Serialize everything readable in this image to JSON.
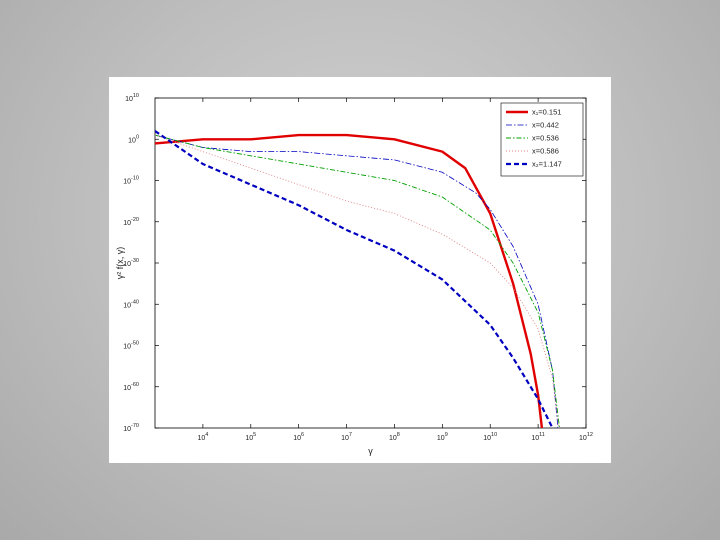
{
  "chart_data": {
    "type": "line",
    "xlabel": "γ",
    "ylabel": "γ² f(x, γ)",
    "x_scale": "log",
    "y_scale": "log",
    "xlim": [
      1000,
      1000000000000
    ],
    "ylim": [
      1e-70,
      10000000000.0
    ],
    "grid": false,
    "legend_position": "top-right",
    "x_ticks": [
      {
        "value": 10000,
        "base": "10",
        "exp": "4"
      },
      {
        "value": 100000,
        "base": "10",
        "exp": "5"
      },
      {
        "value": 1000000,
        "base": "10",
        "exp": "6"
      },
      {
        "value": 10000000,
        "base": "10",
        "exp": "7"
      },
      {
        "value": 100000000,
        "base": "10",
        "exp": "8"
      },
      {
        "value": 1000000000,
        "base": "10",
        "exp": "9"
      },
      {
        "value": 10000000000,
        "base": "10",
        "exp": "10"
      },
      {
        "value": 100000000000,
        "base": "10",
        "exp": "11"
      },
      {
        "value": 1000000000000,
        "base": "10",
        "exp": "12"
      }
    ],
    "y_ticks": [
      {
        "value": 10000000000.0,
        "base": "10",
        "exp": "10"
      },
      {
        "value": 1,
        "base": "10",
        "exp": "0"
      },
      {
        "value": 1e-10,
        "base": "10",
        "exp": "-10"
      },
      {
        "value": 1e-20,
        "base": "10",
        "exp": "-20"
      },
      {
        "value": 1e-30,
        "base": "10",
        "exp": "-30"
      },
      {
        "value": 1e-40,
        "base": "10",
        "exp": "-40"
      },
      {
        "value": 1e-50,
        "base": "10",
        "exp": "-50"
      },
      {
        "value": 1e-60,
        "base": "10",
        "exp": "-60"
      },
      {
        "value": 1e-70,
        "base": "10",
        "exp": "-70"
      }
    ],
    "series": [
      {
        "name": "x₁=0.151",
        "color": "#e00000",
        "style": "solid-thick",
        "points": [
          [
            1000,
            0.1
          ],
          [
            10000,
            1.0
          ],
          [
            100000,
            1.0
          ],
          [
            1000000,
            10.0
          ],
          [
            10000000,
            10.0
          ],
          [
            100000000,
            1.0
          ],
          [
            1000000000,
            0.001
          ],
          [
            3000000000,
            1e-07
          ],
          [
            10000000000,
            1e-18
          ],
          [
            30000000000,
            1e-35
          ],
          [
            70000000000,
            1e-52
          ],
          [
            100000000000,
            1e-62
          ],
          [
            120000000000,
            1e-70
          ]
        ]
      },
      {
        "name": "x=0.442",
        "color": "#0000c0",
        "style": "dashdot-thin",
        "points": [
          [
            1000,
            10.0
          ],
          [
            10000,
            0.01
          ],
          [
            100000,
            0.001
          ],
          [
            1000000,
            0.001
          ],
          [
            10000000,
            0.0001
          ],
          [
            100000000,
            1e-05
          ],
          [
            1000000000,
            1e-08
          ],
          [
            5000000000,
            1e-13
          ],
          [
            10000000000,
            1e-17
          ],
          [
            30000000000,
            1e-26
          ],
          [
            100000000000,
            1e-40
          ],
          [
            200000000000,
            1e-56
          ],
          [
            260000000000,
            1e-70
          ]
        ]
      },
      {
        "name": "x=0.536",
        "color": "#00a000",
        "style": "dashdot",
        "points": [
          [
            1000,
            10.0
          ],
          [
            10000,
            0.01
          ],
          [
            100000,
            0.0001
          ],
          [
            1000000,
            1e-06
          ],
          [
            10000000,
            1e-08
          ],
          [
            100000000,
            1e-10
          ],
          [
            1000000000,
            1e-14
          ],
          [
            10000000000,
            1e-22
          ],
          [
            30000000000,
            1e-30
          ],
          [
            100000000000,
            1e-42
          ],
          [
            200000000000,
            1e-56
          ],
          [
            280000000000,
            1e-70
          ]
        ]
      },
      {
        "name": "x=0.586",
        "color": "#e08080",
        "style": "dotted",
        "points": [
          [
            1000,
            10.0
          ],
          [
            10000,
            0.001
          ],
          [
            100000,
            1e-07
          ],
          [
            1000000,
            1e-11
          ],
          [
            10000000,
            1e-15
          ],
          [
            100000000,
            1e-18
          ],
          [
            1000000000,
            1e-23
          ],
          [
            10000000000,
            1e-30
          ],
          [
            30000000000,
            1e-36
          ],
          [
            100000000000,
            1e-46
          ],
          [
            200000000000,
            1e-58
          ],
          [
            270000000000,
            1e-70
          ]
        ]
      },
      {
        "name": "x₂=1.147",
        "color": "#0000c0",
        "style": "dashed-thick",
        "points": [
          [
            1000,
            100.0
          ],
          [
            10000,
            1e-06
          ],
          [
            100000,
            1e-11
          ],
          [
            1000000,
            1e-16
          ],
          [
            10000000,
            1e-22
          ],
          [
            100000000,
            1e-27
          ],
          [
            1000000000,
            1e-34
          ],
          [
            10000000000,
            1e-45
          ],
          [
            30000000000,
            1e-53
          ],
          [
            100000000000,
            1e-63
          ],
          [
            200000000000,
            1e-70
          ]
        ]
      }
    ]
  }
}
